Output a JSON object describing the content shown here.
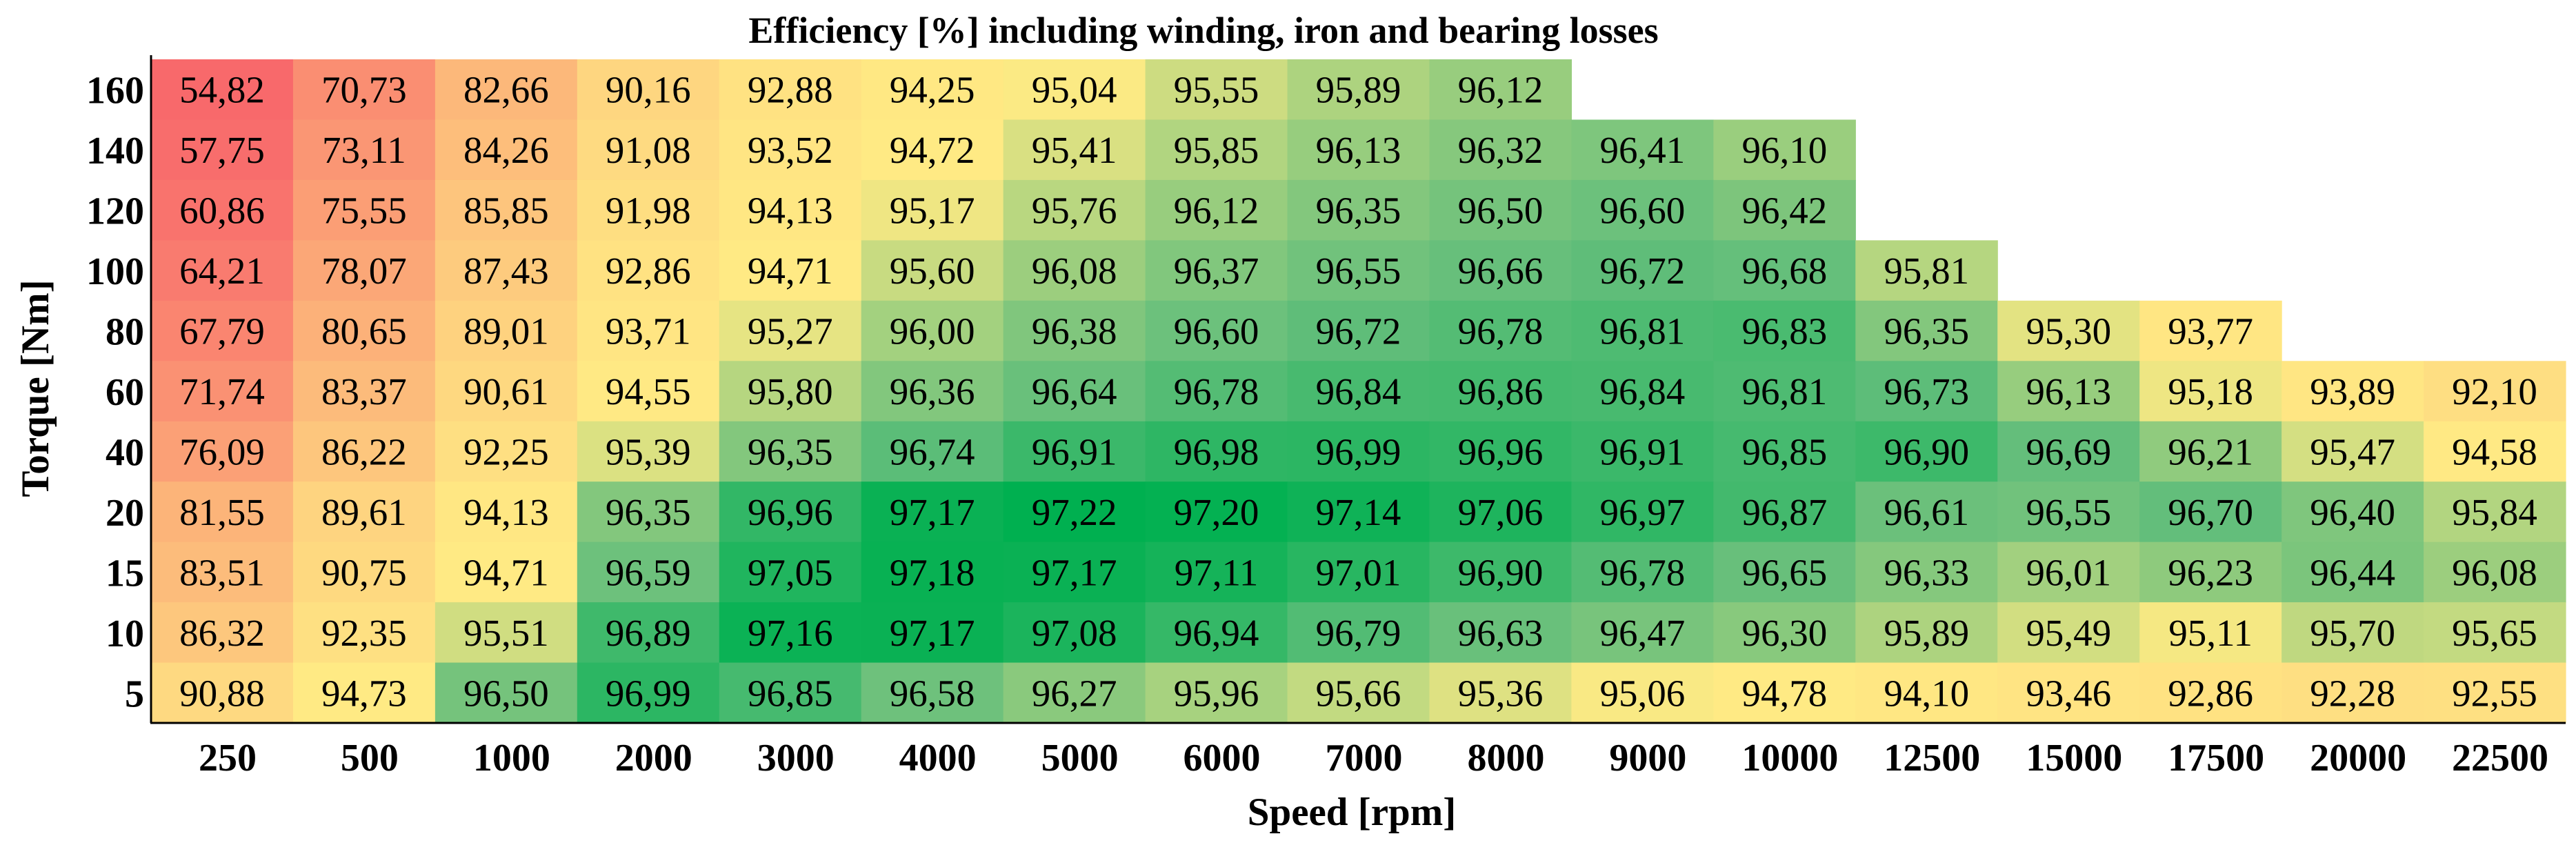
{
  "chart_data": {
    "type": "heatmap",
    "title": "Efficiency [%] including winding, iron and bearing losses",
    "xlabel": "Speed [rpm]",
    "ylabel": "Torque [Nm]",
    "x_categories": [
      "250",
      "500",
      "1000",
      "2000",
      "3000",
      "4000",
      "5000",
      "6000",
      "7000",
      "8000",
      "9000",
      "10000",
      "12500",
      "15000",
      "17500",
      "20000",
      "22500"
    ],
    "y_categories": [
      "160",
      "140",
      "120",
      "100",
      "80",
      "60",
      "40",
      "20",
      "15",
      "10",
      "5"
    ],
    "values": [
      [
        54.82,
        70.73,
        82.66,
        90.16,
        92.88,
        94.25,
        95.04,
        95.55,
        95.89,
        96.12,
        null,
        null,
        null,
        null,
        null,
        null,
        null
      ],
      [
        57.75,
        73.11,
        84.26,
        91.08,
        93.52,
        94.72,
        95.41,
        95.85,
        96.13,
        96.32,
        96.41,
        96.1,
        null,
        null,
        null,
        null,
        null
      ],
      [
        60.86,
        75.55,
        85.85,
        91.98,
        94.13,
        95.17,
        95.76,
        96.12,
        96.35,
        96.5,
        96.6,
        96.42,
        null,
        null,
        null,
        null,
        null
      ],
      [
        64.21,
        78.07,
        87.43,
        92.86,
        94.71,
        95.6,
        96.08,
        96.37,
        96.55,
        96.66,
        96.72,
        96.68,
        95.81,
        null,
        null,
        null,
        null
      ],
      [
        67.79,
        80.65,
        89.01,
        93.71,
        95.27,
        96.0,
        96.38,
        96.6,
        96.72,
        96.78,
        96.81,
        96.83,
        96.35,
        95.3,
        93.77,
        null,
        null
      ],
      [
        71.74,
        83.37,
        90.61,
        94.55,
        95.8,
        96.36,
        96.64,
        96.78,
        96.84,
        96.86,
        96.84,
        96.81,
        96.73,
        96.13,
        95.18,
        93.89,
        92.1
      ],
      [
        76.09,
        86.22,
        92.25,
        95.39,
        96.35,
        96.74,
        96.91,
        96.98,
        96.99,
        96.96,
        96.91,
        96.85,
        96.9,
        96.69,
        96.21,
        95.47,
        94.58
      ],
      [
        81.55,
        89.61,
        94.13,
        96.35,
        96.96,
        97.17,
        97.22,
        97.2,
        97.14,
        97.06,
        96.97,
        96.87,
        96.61,
        96.55,
        96.7,
        96.4,
        95.84
      ],
      [
        83.51,
        90.75,
        94.71,
        96.59,
        97.05,
        97.18,
        97.17,
        97.11,
        97.01,
        96.9,
        96.78,
        96.65,
        96.33,
        96.01,
        96.23,
        96.44,
        96.08
      ],
      [
        86.32,
        92.35,
        95.51,
        96.89,
        97.16,
        97.17,
        97.08,
        96.94,
        96.79,
        96.63,
        96.47,
        96.3,
        95.89,
        95.49,
        95.11,
        95.7,
        95.65
      ],
      [
        90.88,
        94.73,
        96.5,
        96.99,
        96.85,
        96.58,
        96.27,
        95.96,
        95.66,
        95.36,
        95.06,
        94.78,
        94.1,
        93.46,
        92.86,
        92.28,
        92.55
      ]
    ],
    "number_format": {
      "decimal_separator": ",",
      "decimals": 2
    },
    "color_scale": {
      "low": "#F8696B",
      "mid": "#FFEB84",
      "high": "#63BE7B",
      "max": "#00B050"
    },
    "grid": false
  }
}
